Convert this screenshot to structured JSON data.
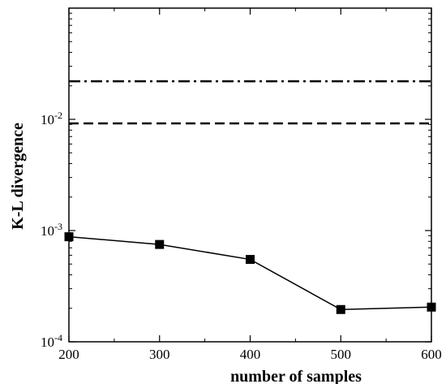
{
  "chart_data": {
    "type": "line",
    "xlabel": "number of samples",
    "ylabel": "K-L divergence",
    "xlim": [
      200,
      600
    ],
    "ylim": [
      0.0001,
      0.1
    ],
    "y_scale": "log",
    "grid": false,
    "x_ticks": [
      200,
      300,
      400,
      500,
      600
    ],
    "x_tick_labels": [
      "200",
      "300",
      "400",
      "500",
      "600"
    ],
    "y_ticks": [
      {
        "value": 0.0001,
        "base": "10",
        "exp": "-4"
      },
      {
        "value": 0.001,
        "base": "10",
        "exp": "-3"
      },
      {
        "value": 0.01,
        "base": "10",
        "exp": "-2"
      }
    ],
    "series": [
      {
        "style": "solid",
        "marker": "square",
        "color": "#000000",
        "x": [
          200,
          300,
          400,
          500,
          600
        ],
        "y": [
          0.00088,
          0.00075,
          0.00055,
          0.000195,
          0.000205
        ]
      },
      {
        "style": "dashed",
        "color": "#000000",
        "x": [
          200,
          600
        ],
        "y": [
          0.0092,
          0.0092
        ]
      },
      {
        "style": "dash-dot",
        "color": "#000000",
        "x": [
          200,
          600
        ],
        "y": [
          0.022,
          0.022
        ]
      }
    ]
  }
}
